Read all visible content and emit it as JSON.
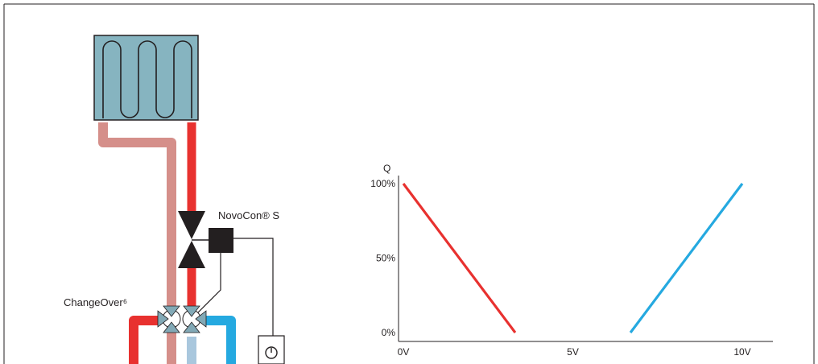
{
  "diagram": {
    "valve_label": "NovoCon® S",
    "changeover_label": "ChangeOver⁶",
    "colors": {
      "hot": "#e8312f",
      "return_hot": "#d58f8a",
      "cold": "#25a9e0",
      "return_cold": "#a9c7dd",
      "emitter": "#86b4c0",
      "valve_body": "#231f20",
      "changeover_valve": "#82a9b6"
    },
    "icons": {
      "emitter": "heating-cooling-coil-icon",
      "valve": "pressure-independent-valve-icon",
      "actuator": "actuator-box-icon",
      "thermostat": "room-thermostat-icon"
    }
  },
  "chart_data": {
    "type": "line",
    "ylabel": "Q",
    "xlabel": "",
    "x_tick_labels": [
      "0V",
      "5V",
      "10V"
    ],
    "y_tick_labels": [
      "0%",
      "50%",
      "100%"
    ],
    "xlim": [
      0,
      10
    ],
    "ylim": [
      0,
      100
    ],
    "grid": false,
    "series": [
      {
        "color": "#e8312f",
        "points": [
          [
            0,
            100
          ],
          [
            3.3,
            0
          ]
        ]
      },
      {
        "color": "#25a9e0",
        "points": [
          [
            6.7,
            0
          ],
          [
            10,
            100
          ]
        ]
      }
    ]
  }
}
